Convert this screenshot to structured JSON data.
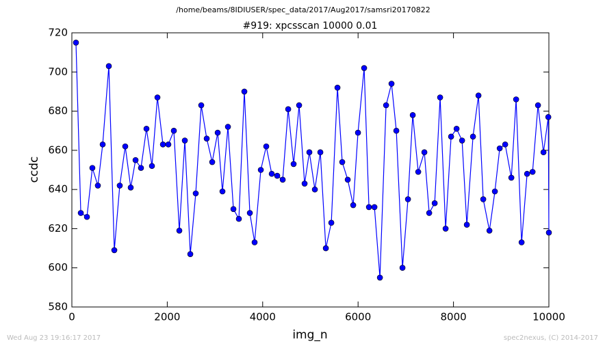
{
  "chart_data": {
    "type": "line",
    "suptitle": "/home/beams/8IDIUSER/spec_data/2017/Aug2017/samsri20170822",
    "title": "#919: xpcsscan 10000 0.01",
    "x_label": "img_n",
    "y_label": "ccdc",
    "footer_left": "Wed Aug 23 19:16:17 2017",
    "footer_right": "spec2nexus, (C) 2014-2017",
    "x": [
      86,
      187,
      316,
      430,
      545,
      646,
      775,
      890,
      1004,
      1119,
      1234,
      1335,
      1449,
      1564,
      1679,
      1794,
      1909,
      2023,
      2138,
      2253,
      2368,
      2483,
      2597,
      2712,
      2827,
      2942,
      3057,
      3157,
      3272,
      3387,
      3501,
      3616,
      3731,
      3831,
      3961,
      4075,
      4190,
      4305,
      4420,
      4535,
      4649,
      4764,
      4879,
      4979,
      5094,
      5209,
      5324,
      5439,
      5568,
      5668,
      5783,
      5898,
      5998,
      6127,
      6228,
      6343,
      6458,
      6587,
      6701,
      6802,
      6931,
      7046,
      7146,
      7261,
      7390,
      7491,
      7606,
      7720,
      7835,
      7950,
      8065,
      8180,
      8280,
      8409,
      8524,
      8624,
      8754,
      8868,
      8969,
      9084,
      9213,
      9313,
      9428,
      9543,
      9658,
      9772,
      9887,
      9988,
      10000
    ],
    "series": [
      {
        "name": "ccdc",
        "color": "#0000ff",
        "values": [
          715,
          628,
          626,
          651,
          642,
          663,
          703,
          609,
          642,
          662,
          641,
          655,
          651,
          671,
          652,
          687,
          663,
          663,
          670,
          619,
          665,
          607,
          638,
          683,
          666,
          654,
          669,
          639,
          672,
          630,
          625,
          690,
          628,
          613,
          650,
          662,
          648,
          647,
          645,
          681,
          653,
          683,
          643,
          659,
          640,
          659,
          610,
          623,
          692,
          654,
          645,
          632,
          669,
          702,
          631,
          631,
          595,
          683,
          694,
          670,
          600,
          635,
          678,
          649,
          659,
          628,
          633,
          687,
          620,
          667,
          671,
          665,
          622,
          667,
          688,
          635,
          619,
          639,
          661,
          663,
          646,
          686,
          613,
          648,
          649,
          683,
          659,
          677,
          618
        ]
      }
    ],
    "xlim": [
      0,
      10000
    ],
    "ylim": [
      580,
      720
    ],
    "xticks": [
      0,
      2000,
      4000,
      6000,
      8000,
      10000
    ],
    "yticks": [
      580,
      600,
      620,
      640,
      660,
      680,
      700,
      720
    ]
  }
}
